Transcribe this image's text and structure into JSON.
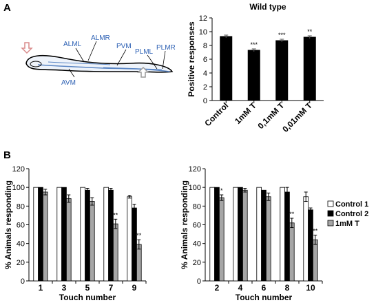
{
  "panel_labels": {
    "a": "A",
    "b": "B"
  },
  "worm": {
    "neurons": [
      "ALML",
      "ALMR",
      "PVM",
      "PLML",
      "PLMR",
      "AVM"
    ],
    "colors": {
      "neuron_text": "#2b5fb3",
      "front_arrow": "#d98a8a",
      "rear_arrow": "#9a9a9a"
    }
  },
  "chart_data": [
    {
      "id": "panelA",
      "type": "bar",
      "title": "Wild type",
      "ylabel": "Positive responses",
      "xlabel": "",
      "ylim": [
        0,
        12
      ],
      "yticks": [
        0,
        2,
        4,
        6,
        8,
        10,
        12
      ],
      "categories": [
        "Control",
        "1mM T",
        "0,1mM T",
        "0,01mM T"
      ],
      "values": [
        9.3,
        7.3,
        8.7,
        9.2
      ],
      "errors": [
        0.2,
        0.2,
        0.2,
        0.2
      ],
      "significance": [
        "",
        "***",
        "***",
        "**"
      ],
      "grid": false,
      "bar_color": "#000000"
    },
    {
      "id": "panelB1",
      "type": "bar",
      "title": "",
      "ylabel": "% Animals responding",
      "xlabel": "Touch number",
      "ylim": [
        0,
        120
      ],
      "yticks": [
        0,
        20,
        40,
        60,
        80,
        100,
        120
      ],
      "categories": [
        "1",
        "3",
        "5",
        "7",
        "9"
      ],
      "series": [
        {
          "name": "Control 1",
          "color": "#ffffff",
          "values": [
            100,
            100,
            100,
            100,
            90
          ],
          "errors": [
            0,
            0,
            0,
            0,
            1.5
          ],
          "stars": [
            "",
            "",
            "",
            "",
            ""
          ]
        },
        {
          "name": "Control 2",
          "color": "#000000",
          "values": [
            100,
            100,
            97,
            97,
            78
          ],
          "errors": [
            0,
            0,
            2,
            2,
            4
          ],
          "stars": [
            "",
            "",
            "",
            "",
            ""
          ]
        },
        {
          "name": "1mM T",
          "color": "#a6a6a6",
          "values": [
            95,
            88,
            85,
            61,
            39
          ],
          "errors": [
            3,
            4,
            4,
            5,
            5
          ],
          "stars": [
            "",
            "",
            "",
            "**",
            "**"
          ]
        }
      ],
      "grid": false
    },
    {
      "id": "panelB2",
      "type": "bar",
      "title": "",
      "ylabel": "% Animals responding",
      "xlabel": "Touch number",
      "ylim": [
        0,
        120
      ],
      "yticks": [
        0,
        20,
        40,
        60,
        80,
        100,
        120
      ],
      "categories": [
        "2",
        "4",
        "6",
        "8",
        "10"
      ],
      "series": [
        {
          "name": "Control 1",
          "color": "#ffffff",
          "values": [
            100,
            100,
            100,
            100,
            90
          ],
          "errors": [
            0,
            0,
            0,
            0,
            5
          ],
          "stars": [
            "",
            "",
            "",
            "",
            ""
          ]
        },
        {
          "name": "Control 2",
          "color": "#000000",
          "values": [
            100,
            100,
            97,
            95,
            76
          ],
          "errors": [
            0,
            0,
            0,
            5,
            2
          ],
          "stars": [
            "",
            "",
            "",
            "",
            ""
          ]
        },
        {
          "name": "1mM T",
          "color": "#a6a6a6",
          "values": [
            89,
            97,
            90,
            62,
            44
          ],
          "errors": [
            3,
            2,
            4,
            5,
            5
          ],
          "stars": [
            "*",
            "",
            "",
            "**",
            "**"
          ]
        }
      ],
      "legend": "right",
      "grid": false
    }
  ]
}
